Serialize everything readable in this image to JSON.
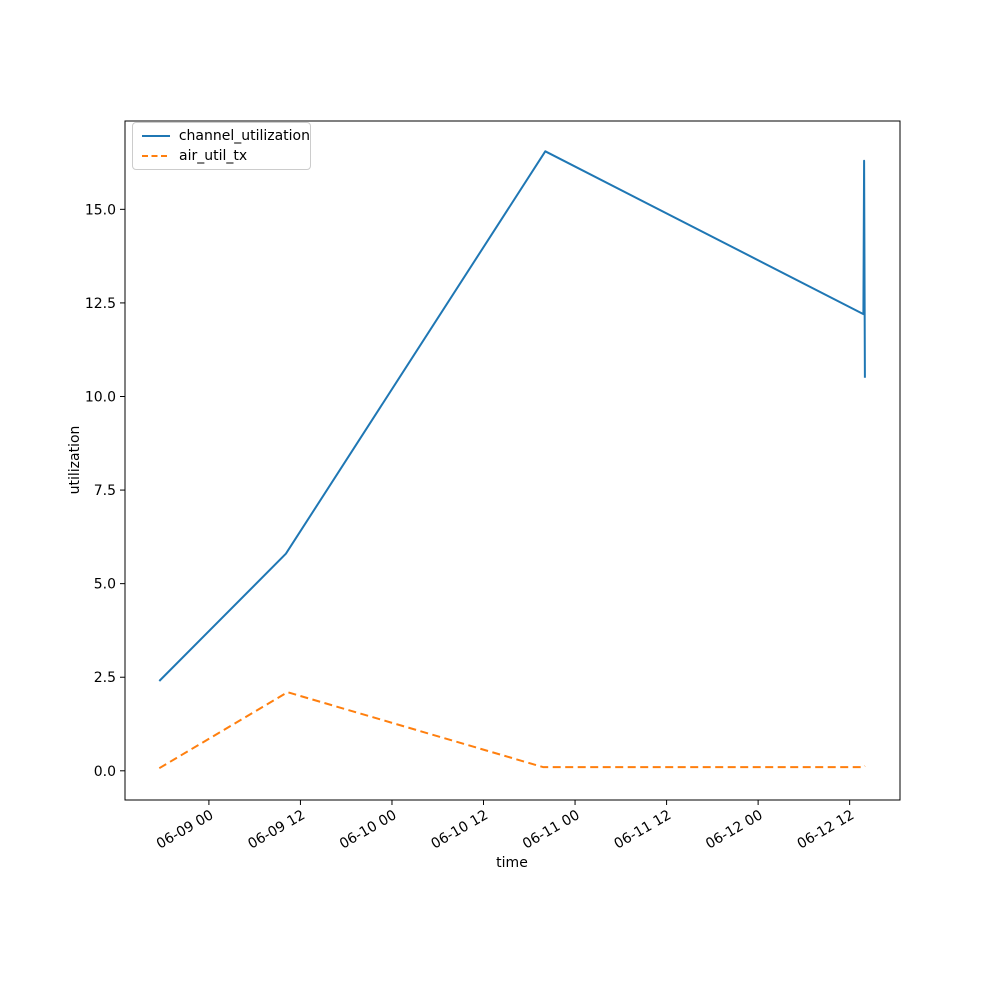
{
  "figure": {
    "background": "#ffffff",
    "text_color": "#000000",
    "spine_color": "#000000"
  },
  "chart_data": {
    "type": "line",
    "title": "",
    "xlabel": "time",
    "ylabel": "utilization",
    "grid": false,
    "x_unit_note": "hours relative to 06-09 00:00",
    "xlim_hours": [
      -11.0,
      90.6
    ],
    "ylim": [
      -0.78,
      17.36
    ],
    "x_ticks": [
      {
        "hours": 0,
        "label": "06-09 00"
      },
      {
        "hours": 12,
        "label": "06-09 12"
      },
      {
        "hours": 24,
        "label": "06-10 00"
      },
      {
        "hours": 36,
        "label": "06-10 12"
      },
      {
        "hours": 48,
        "label": "06-11 00"
      },
      {
        "hours": 60,
        "label": "06-11 12"
      },
      {
        "hours": 72,
        "label": "06-12 00"
      },
      {
        "hours": 84,
        "label": "06-12 12"
      }
    ],
    "y_ticks": [
      {
        "value": 0,
        "label": "0.0"
      },
      {
        "value": 2.5,
        "label": "2.5"
      },
      {
        "value": 5,
        "label": "5.0"
      },
      {
        "value": 7.5,
        "label": "7.5"
      },
      {
        "value": 10,
        "label": "10.0"
      },
      {
        "value": 12.5,
        "label": "12.5"
      },
      {
        "value": 15,
        "label": "15.0"
      }
    ],
    "legend": {
      "position": "upper-left",
      "entries": [
        "channel_utilization",
        "air_util_tx"
      ]
    },
    "series": [
      {
        "name": "channel_utilization",
        "color": "#1f77b4",
        "line_style": "solid",
        "points": [
          {
            "time": "06-08 17:30",
            "hours": -6.5,
            "value": 2.4
          },
          {
            "time": "06-09 10:05",
            "hours": 10.1,
            "value": 5.8
          },
          {
            "time": "06-10 20:05",
            "hours": 44.1,
            "value": 16.55
          },
          {
            "time": "06-12 13:50",
            "hours": 85.8,
            "value": 12.2
          },
          {
            "time": "06-12 13:55",
            "hours": 85.9,
            "value": 16.3
          },
          {
            "time": "06-12 14:00",
            "hours": 86.0,
            "value": 10.5
          }
        ]
      },
      {
        "name": "air_util_tx",
        "color": "#ff7f0e",
        "line_style": "dashed",
        "points": [
          {
            "time": "06-08 17:30",
            "hours": -6.5,
            "value": 0.07
          },
          {
            "time": "06-09 10:15",
            "hours": 10.3,
            "value": 2.1
          },
          {
            "time": "06-10 19:50",
            "hours": 43.8,
            "value": 0.1
          },
          {
            "time": "06-12 13:55",
            "hours": 85.9,
            "value": 0.1
          },
          {
            "time": "06-12 14:00",
            "hours": 86.0,
            "value": 0.13
          }
        ]
      }
    ]
  }
}
